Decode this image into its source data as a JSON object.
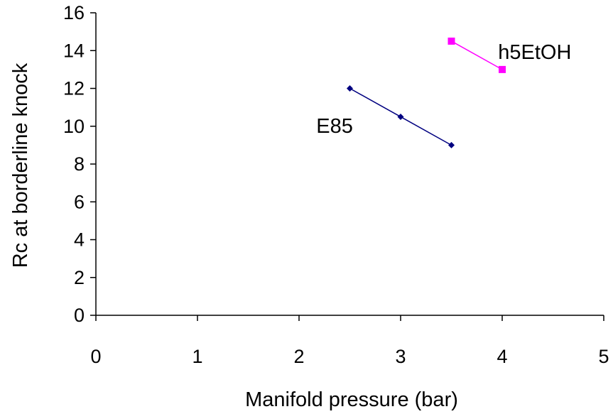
{
  "chart_data": {
    "type": "line",
    "title": "",
    "xlabel": "Manifold pressure (bar)",
    "ylabel": "Rc at borderline knock",
    "xlim": [
      0,
      5
    ],
    "ylim": [
      0,
      16
    ],
    "xticks": [
      0,
      1,
      2,
      3,
      4,
      5
    ],
    "yticks": [
      0,
      2,
      4,
      6,
      8,
      10,
      12,
      14,
      16
    ],
    "grid": false,
    "legend": "none",
    "series": [
      {
        "name": "E85",
        "color": "#000080",
        "marker": "diamond",
        "x": [
          2.5,
          3.0,
          3.5
        ],
        "y": [
          12.0,
          10.5,
          9.0
        ]
      },
      {
        "name": "h5EtOH",
        "color": "#ff00ff",
        "marker": "square",
        "x": [
          3.5,
          4.0
        ],
        "y": [
          14.5,
          13.0
        ]
      }
    ]
  }
}
